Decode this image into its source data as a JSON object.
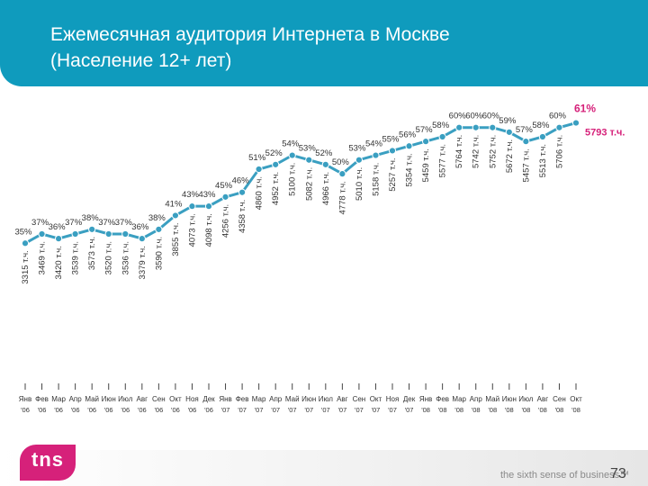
{
  "header": {
    "title_line1": "Ежемесячная аудитория Интернета в Москве",
    "title_line2": "(Население 12+ лет)",
    "background": "#0f9bbd"
  },
  "chart_data": {
    "type": "line",
    "series": [
      {
        "name": "",
        "unit": "%",
        "color": "#3a9fc1",
        "values": [
          35,
          37,
          36,
          37,
          38,
          37,
          37,
          36,
          38,
          41,
          43,
          43,
          45,
          46,
          51,
          52,
          54,
          53,
          52,
          50,
          53,
          54,
          55,
          56,
          57,
          58,
          60,
          60,
          60,
          59,
          57,
          58,
          60,
          61
        ]
      }
    ],
    "value_labels": [
      "35%",
      "37%",
      "36%",
      "37%",
      "38%",
      "37%",
      "37%",
      "36%",
      "38%",
      "41%",
      "43%",
      "43%",
      "45%",
      "46%",
      "51%",
      "52%",
      "54%",
      "53%",
      "52%",
      "50%",
      "53%",
      "54%",
      "55%",
      "56%",
      "57%",
      "58%",
      "60%",
      "60%",
      "60%",
      "59%",
      "57%",
      "58%",
      "60%",
      "61%"
    ],
    "audience_labels": [
      "3315 т.ч.",
      "3469 т.ч.",
      "3420 т.ч.",
      "3539 т.ч.",
      "3573 т.ч.",
      "3520 т.ч.",
      "3536 т.ч.",
      "3379 т.ч.",
      "3590 т.ч.",
      "3855 т.ч.",
      "4073 т.ч.",
      "4098 т.ч.",
      "4256 т.ч.",
      "4358 т.ч.",
      "4860 т.ч.",
      "4952 т.ч.",
      "5100 т.ч.",
      "5082 т.ч.",
      "4966 т.ч.",
      "4778 т.ч.",
      "5010 т.ч.",
      "5158 т.ч.",
      "5257 т.ч.",
      "5354 т.ч.",
      "5459 т.ч.",
      "5577 т.ч.",
      "5764 т.ч.",
      "5742 т.ч.",
      "5752 т.ч.",
      "5672 т.ч.",
      "5457 т.ч.",
      "5513 т.ч.",
      "5706 т.ч.",
      "5793 т.ч."
    ],
    "months": [
      "Янв",
      "Фев",
      "Мар",
      "Апр",
      "Май",
      "Июн",
      "Июл",
      "Авг",
      "Сен",
      "Окт",
      "Ноя",
      "Дек",
      "Янв",
      "Фев",
      "Мар",
      "Апр",
      "Май",
      "Июн",
      "Июл",
      "Авг",
      "Сен",
      "Окт",
      "Ноя",
      "Дек",
      "Янв",
      "Фев",
      "Мар",
      "Апр",
      "Май",
      "Июн",
      "Июл",
      "Авг",
      "Сен",
      "Окт"
    ],
    "years": [
      "'06",
      "'06",
      "'06",
      "'06",
      "'06",
      "'06",
      "'06",
      "'06",
      "'06",
      "'06",
      "'06",
      "'06",
      "'07",
      "'07",
      "'07",
      "'07",
      "'07",
      "'07",
      "'07",
      "'07",
      "'07",
      "'07",
      "'07",
      "'07",
      "'08",
      "'08",
      "'08",
      "'08",
      "'08",
      "'08",
      "'08",
      "'08",
      "'08",
      "'08"
    ],
    "highlight": {
      "index": 33,
      "color": "#d6217a"
    },
    "ylim": [
      30,
      65
    ],
    "grid": false,
    "legend": "none"
  },
  "footer": {
    "logo_text": "tns",
    "slogan": "the sixth sense of business™",
    "page_number": "73",
    "logo_color": "#d6217a"
  }
}
